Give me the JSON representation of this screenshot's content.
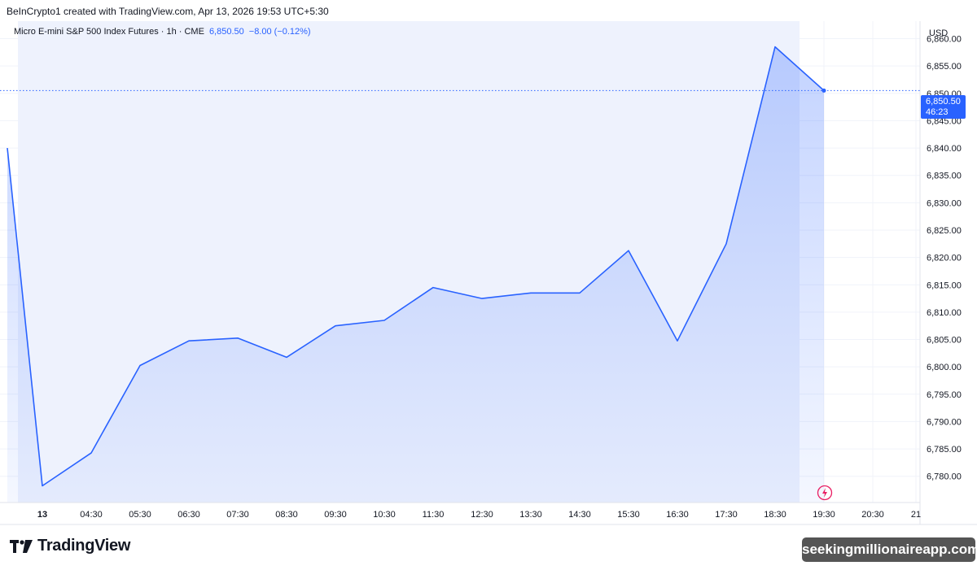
{
  "header": {
    "credit": "BeInCrypto1 created with TradingView.com, Apr 13, 2026 19:53 UTC+5:30"
  },
  "symbol": {
    "name": "Micro E-mini S&P 500 Index Futures · 1h · CME",
    "price": "6,850.50",
    "change": "−8.00 (−0.12%)"
  },
  "currency": "USD",
  "price_tag": {
    "price": "6,850.50",
    "countdown": "46:23"
  },
  "brand": {
    "name": "TradingView"
  },
  "watermark": "seekingmillionaireapp.com",
  "colors": {
    "line": "#2962ff",
    "fill": "#2962ff",
    "session_bg": "#eef2fd"
  },
  "chart_data": {
    "type": "area",
    "x": [
      "03:30",
      "04:00",
      "04:30",
      "05:30",
      "06:30",
      "07:30",
      "08:30",
      "09:30",
      "10:30",
      "11:30",
      "12:30",
      "13:30",
      "14:30",
      "15:30",
      "16:30",
      "17:30",
      "18:30",
      "19:30"
    ],
    "values": [
      6840,
      6778.25,
      6784.25,
      6800.25,
      6804.75,
      6805.25,
      6801.75,
      6807.5,
      6808.5,
      6814.5,
      6812.5,
      6813.5,
      6813.5,
      6821.25,
      6804.75,
      6822.5,
      6858.5,
      6850.5
    ],
    "x_ticks": [
      "13",
      "04:30",
      "05:30",
      "06:30",
      "07:30",
      "08:30",
      "09:30",
      "10:30",
      "11:30",
      "12:30",
      "13:30",
      "14:30",
      "15:30",
      "16:30",
      "17:30",
      "18:30",
      "19:30",
      "20:30",
      "21"
    ],
    "y_ticks": [
      "6,780.00",
      "6,785.00",
      "6,790.00",
      "6,795.00",
      "6,800.00",
      "6,805.00",
      "6,810.00",
      "6,815.00",
      "6,820.00",
      "6,825.00",
      "6,830.00",
      "6,835.00",
      "6,840.00",
      "6,845.00",
      "6,850.00",
      "6,855.00",
      "6,860.00"
    ],
    "ylim": [
      6775.2,
      6863.2
    ],
    "last_price": 6850.5,
    "grid": true,
    "title": "",
    "xlabel": "",
    "ylabel": ""
  }
}
